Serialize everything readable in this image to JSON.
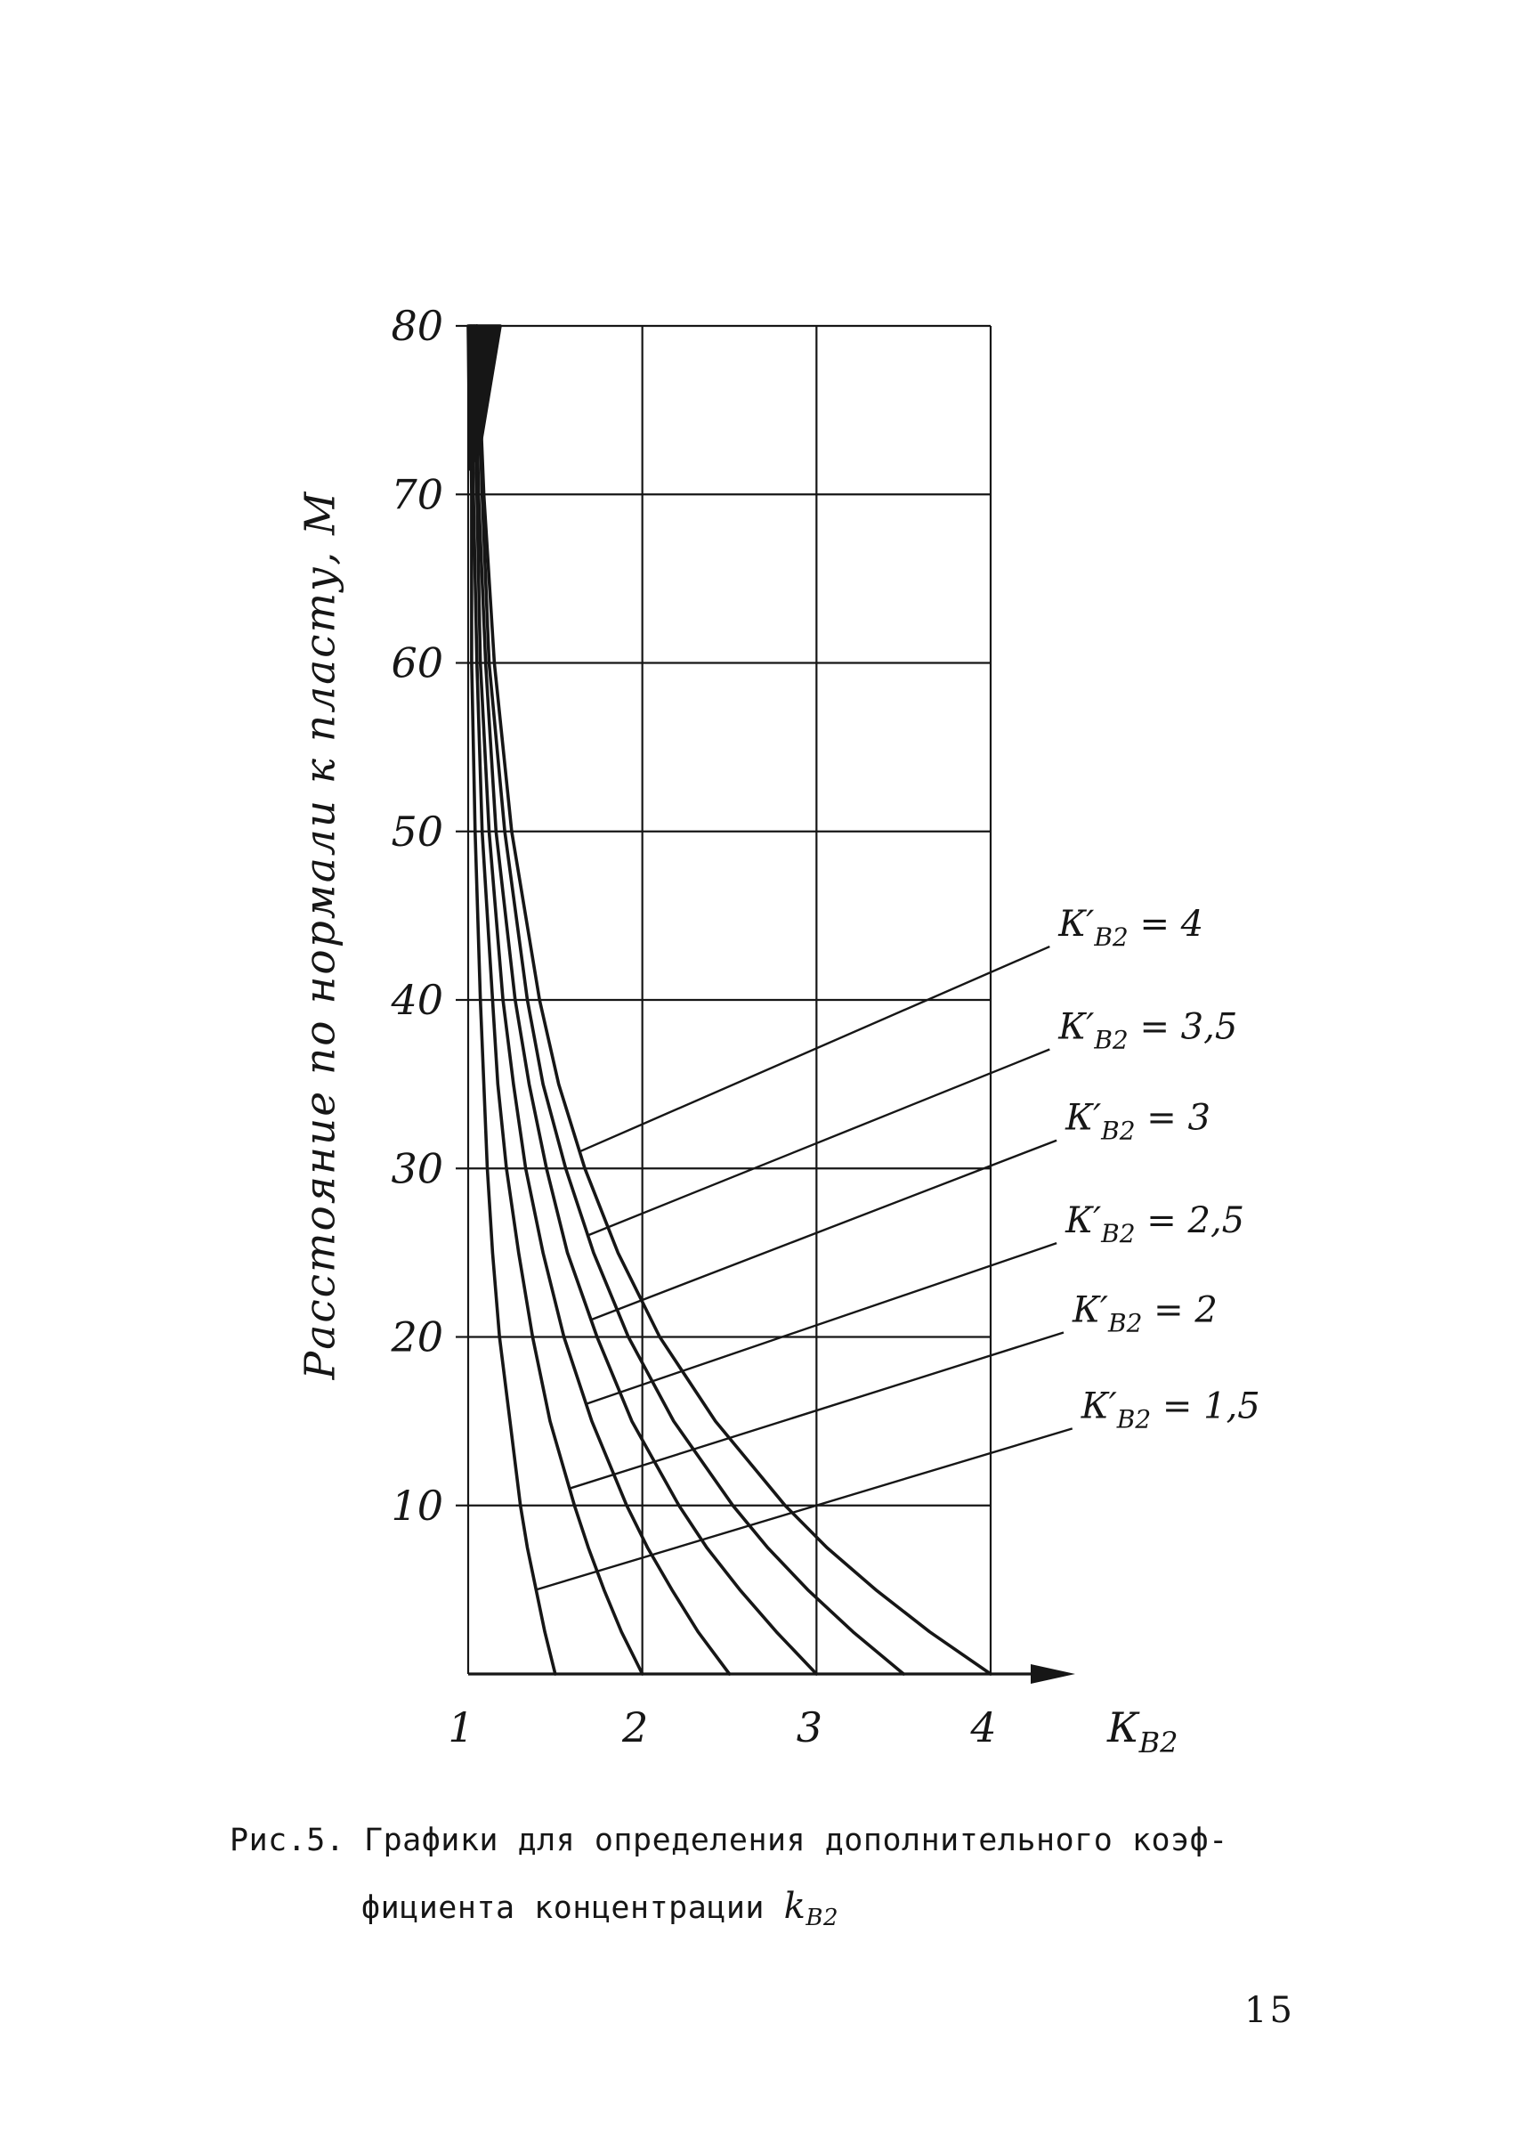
{
  "page": {
    "number": "15"
  },
  "caption": {
    "line1": "Рис.5. Графики для определения дополнительного коэф-",
    "line2_pre": "фициента концентрации ",
    "line2_k": "k",
    "line2_sub": "В2"
  },
  "chart_data": {
    "type": "line",
    "title": "",
    "xlabel_main": "К",
    "xlabel_sub": "В2",
    "ylabel": "Расстояние по нормали к пласту, М",
    "xlim": [
      1,
      4
    ],
    "ylim": [
      0,
      80
    ],
    "grid": true,
    "legend_position": "right-leader-lines",
    "ink": "#161616",
    "paper": "#ffffff",
    "x_ticks": [
      "1",
      "2",
      "3",
      "4"
    ],
    "y_ticks": [
      "80",
      "70",
      "60",
      "50",
      "40",
      "30",
      "20",
      "10"
    ],
    "y_points": [
      0,
      2.5,
      5,
      7.5,
      10,
      15,
      20,
      25,
      30,
      35,
      40,
      50,
      60,
      70,
      80
    ],
    "series": [
      {
        "name": "К'В2 = 4",
        "k": 4,
        "x_points": [
          4.0,
          3.65,
          3.34,
          3.06,
          2.82,
          2.42,
          2.1,
          1.86,
          1.67,
          1.52,
          1.41,
          1.25,
          1.15,
          1.09,
          1.05
        ]
      },
      {
        "name": "К'В2 = 3,5",
        "k": 3.5,
        "x_points": [
          3.5,
          3.21,
          2.95,
          2.72,
          2.52,
          2.18,
          1.92,
          1.72,
          1.56,
          1.43,
          1.34,
          1.21,
          1.12,
          1.08,
          1.05
        ]
      },
      {
        "name": "К'В2 = 3",
        "k": 3,
        "x_points": [
          3.0,
          2.77,
          2.56,
          2.37,
          2.21,
          1.94,
          1.74,
          1.57,
          1.45,
          1.35,
          1.27,
          1.16,
          1.1,
          1.06,
          1.04
        ]
      },
      {
        "name": "К'В2 = 2,5",
        "k": 2.5,
        "x_points": [
          2.5,
          2.32,
          2.17,
          2.03,
          1.91,
          1.71,
          1.55,
          1.43,
          1.33,
          1.26,
          1.2,
          1.12,
          1.07,
          1.05,
          1.03
        ]
      },
      {
        "name": "К'В2 = 2",
        "k": 2,
        "x_points": [
          2.0,
          1.88,
          1.78,
          1.69,
          1.61,
          1.47,
          1.37,
          1.29,
          1.22,
          1.17,
          1.14,
          1.08,
          1.05,
          1.03,
          1.02
        ]
      },
      {
        "name": "К'В2 = 1,5",
        "k": 1.5,
        "x_points": [
          1.5,
          1.44,
          1.39,
          1.34,
          1.3,
          1.24,
          1.18,
          1.14,
          1.11,
          1.09,
          1.07,
          1.04,
          1.02,
          1.02,
          1.01
        ]
      }
    ],
    "annotations": [
      {
        "main": "К′",
        "sub": "В2",
        "val": " = 4",
        "k": 4,
        "label_pos": [
          4.39,
          43.8
        ],
        "attach": [
          1.64,
          31
        ]
      },
      {
        "main": "К′",
        "sub": "В2",
        "val": " = 3,5",
        "k": 3.5,
        "label_pos": [
          4.39,
          37.7
        ],
        "attach": [
          1.68,
          26
        ]
      },
      {
        "main": "К′",
        "sub": "В2",
        "val": " = 3",
        "k": 3,
        "label_pos": [
          4.43,
          32.3
        ],
        "attach": [
          1.7,
          21
        ]
      },
      {
        "main": "К′",
        "sub": "В2",
        "val": " = 2,5",
        "k": 2.5,
        "label_pos": [
          4.43,
          26.2
        ],
        "attach": [
          1.67,
          16
        ]
      },
      {
        "main": "К′",
        "sub": "В2",
        "val": " = 2",
        "k": 2,
        "label_pos": [
          4.47,
          20.9
        ],
        "attach": [
          1.58,
          11
        ]
      },
      {
        "main": "К′",
        "sub": "В2",
        "val": " = 1,5",
        "k": 1.5,
        "label_pos": [
          4.52,
          15.2
        ],
        "attach": [
          1.39,
          5
        ]
      }
    ]
  }
}
